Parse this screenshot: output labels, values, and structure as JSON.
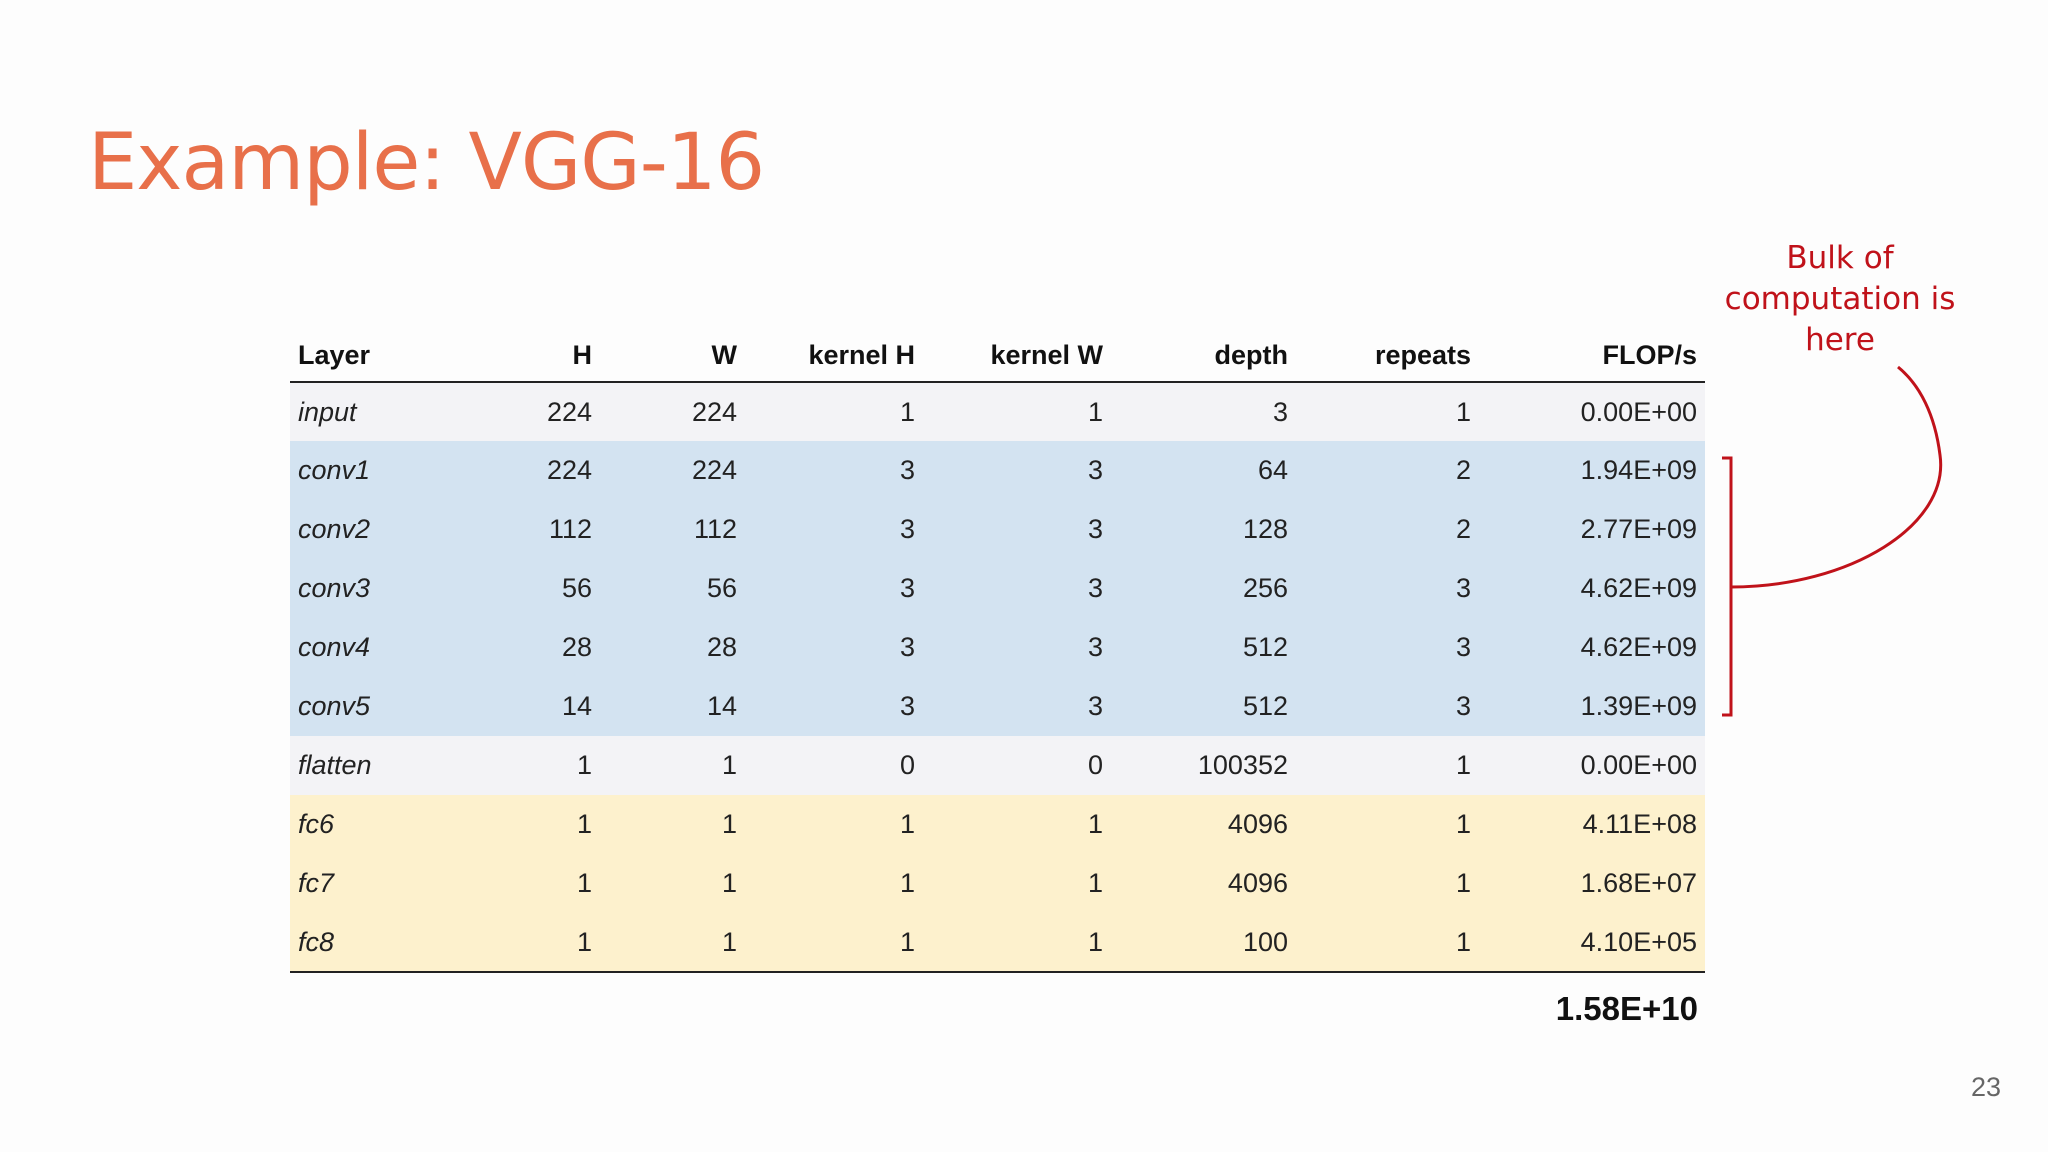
{
  "slide": {
    "title": "Example: VGG-16",
    "page_number": "23",
    "annotation": {
      "line1": "Bulk of",
      "line2": "computation is",
      "line3": "here",
      "color": "#c0121a"
    },
    "total_flops": "1.58E+10",
    "colors": {
      "title": "#e8704a",
      "conv_rows": "#d3e3f1",
      "fc_rows": "#fdf1cd",
      "other_rows": "#f3f3f6"
    }
  },
  "table": {
    "headers": [
      "Layer",
      "H",
      "W",
      "kernel H",
      "kernel W",
      "depth",
      "repeats",
      "FLOP/s"
    ],
    "rows": [
      {
        "group": "other",
        "cells": [
          "input",
          "224",
          "224",
          "1",
          "1",
          "3",
          "1",
          "0.00E+00"
        ]
      },
      {
        "group": "conv",
        "cells": [
          "conv1",
          "224",
          "224",
          "3",
          "3",
          "64",
          "2",
          "1.94E+09"
        ]
      },
      {
        "group": "conv",
        "cells": [
          "conv2",
          "112",
          "112",
          "3",
          "3",
          "128",
          "2",
          "2.77E+09"
        ]
      },
      {
        "group": "conv",
        "cells": [
          "conv3",
          "56",
          "56",
          "3",
          "3",
          "256",
          "3",
          "4.62E+09"
        ]
      },
      {
        "group": "conv",
        "cells": [
          "conv4",
          "28",
          "28",
          "3",
          "3",
          "512",
          "3",
          "4.62E+09"
        ]
      },
      {
        "group": "conv",
        "cells": [
          "conv5",
          "14",
          "14",
          "3",
          "3",
          "512",
          "3",
          "1.39E+09"
        ]
      },
      {
        "group": "other",
        "cells": [
          "flatten",
          "1",
          "1",
          "0",
          "0",
          "100352",
          "1",
          "0.00E+00"
        ]
      },
      {
        "group": "fc",
        "cells": [
          "fc6",
          "1",
          "1",
          "1",
          "1",
          "4096",
          "1",
          "4.11E+08"
        ]
      },
      {
        "group": "fc",
        "cells": [
          "fc7",
          "1",
          "1",
          "1",
          "1",
          "4096",
          "1",
          "1.68E+07"
        ]
      },
      {
        "group": "fc",
        "cells": [
          "fc8",
          "1",
          "1",
          "1",
          "1",
          "100",
          "1",
          "4.10E+05"
        ]
      }
    ]
  }
}
